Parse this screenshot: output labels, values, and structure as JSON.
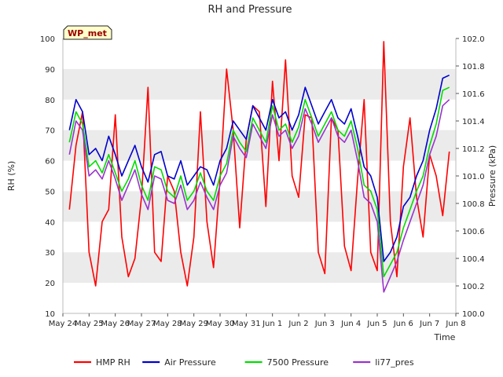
{
  "chart_data": {
    "type": "line",
    "title": "RH and Pressure",
    "xlabel": "Time",
    "ylabel_left": "RH (%)",
    "ylabel_right": "Pressure (kPa)",
    "annotation": "WP_met",
    "x_ticks": [
      "May 24",
      "May 25",
      "May 26",
      "May 27",
      "May 28",
      "May 29",
      "May 30",
      "May 31",
      "Jun 1",
      "Jun 2",
      "Jun 3",
      "Jun 4",
      "Jun 5",
      "Jun 6",
      "Jun 7",
      "Jun 8"
    ],
    "y_left_ticks": [
      10,
      20,
      30,
      40,
      50,
      60,
      70,
      80,
      90,
      100
    ],
    "y_right_ticks": [
      100.0,
      100.2,
      100.4,
      100.6,
      100.8,
      101.0,
      101.2,
      101.4,
      101.6,
      101.8,
      102.0
    ],
    "ylim_left": [
      10,
      100
    ],
    "ylim_right": [
      100.0,
      102.0
    ],
    "grid": "horizontal bands",
    "legend_position": "bottom-center",
    "colors": {
      "HMP RH": "#ff0000",
      "Air Pressure": "#0000cc",
      "7500 Pressure": "#00dd00",
      "li77_pres": "#9933cc",
      "band": "#ebebeb"
    },
    "series": [
      {
        "name": "HMP RH",
        "axis": "left",
        "x": [
          "2023-05-24 06:00",
          "2023-05-24 12:00",
          "2023-05-24 18:00",
          "2023-05-25 00:00",
          "2023-05-25 06:00",
          "2023-05-25 12:00",
          "2023-05-25 18:00",
          "2023-05-26 00:00",
          "2023-05-26 06:00",
          "2023-05-26 12:00",
          "2023-05-26 18:00",
          "2023-05-27 00:00",
          "2023-05-27 06:00",
          "2023-05-27 12:00",
          "2023-05-27 18:00",
          "2023-05-28 00:00",
          "2023-05-28 06:00",
          "2023-05-28 12:00",
          "2023-05-28 18:00",
          "2023-05-29 00:00",
          "2023-05-29 06:00",
          "2023-05-29 12:00",
          "2023-05-29 18:00",
          "2023-05-30 00:00",
          "2023-05-30 06:00",
          "2023-05-30 12:00",
          "2023-05-30 18:00",
          "2023-05-31 00:00",
          "2023-05-31 06:00",
          "2023-05-31 12:00",
          "2023-05-31 18:00",
          "2023-06-01 00:00",
          "2023-06-01 06:00",
          "2023-06-01 12:00",
          "2023-06-01 18:00",
          "2023-06-02 00:00",
          "2023-06-02 06:00",
          "2023-06-02 12:00",
          "2023-06-02 18:00",
          "2023-06-03 00:00",
          "2023-06-03 06:00",
          "2023-06-03 12:00",
          "2023-06-03 18:00",
          "2023-06-04 00:00",
          "2023-06-04 06:00",
          "2023-06-04 12:00",
          "2023-06-04 18:00",
          "2023-06-05 00:00",
          "2023-06-05 06:00",
          "2023-06-05 12:00",
          "2023-06-05 18:00",
          "2023-06-06 00:00",
          "2023-06-06 06:00",
          "2023-06-06 12:00",
          "2023-06-06 18:00",
          "2023-06-07 00:00",
          "2023-06-07 06:00",
          "2023-06-07 12:00",
          "2023-06-07 18:00"
        ],
        "values": [
          44,
          65,
          76,
          30,
          19,
          40,
          44,
          75,
          35,
          22,
          28,
          48,
          84,
          30,
          27,
          55,
          50,
          30,
          19,
          35,
          76,
          40,
          25,
          54,
          90,
          70,
          38,
          67,
          78,
          76,
          45,
          86,
          60,
          93,
          55,
          48,
          75,
          74,
          30,
          23,
          74,
          70,
          32,
          24,
          54,
          80,
          30,
          24,
          99,
          40,
          22,
          58,
          74,
          48,
          35,
          62,
          55,
          42,
          63
        ]
      },
      {
        "name": "Air Pressure",
        "axis": "left",
        "x": [
          "2023-05-24 06:00",
          "2023-05-24 12:00",
          "2023-05-24 18:00",
          "2023-05-25 00:00",
          "2023-05-25 06:00",
          "2023-05-25 12:00",
          "2023-05-25 18:00",
          "2023-05-26 00:00",
          "2023-05-26 06:00",
          "2023-05-26 12:00",
          "2023-05-26 18:00",
          "2023-05-27 00:00",
          "2023-05-27 06:00",
          "2023-05-27 12:00",
          "2023-05-27 18:00",
          "2023-05-28 00:00",
          "2023-05-28 06:00",
          "2023-05-28 12:00",
          "2023-05-28 18:00",
          "2023-05-29 00:00",
          "2023-05-29 06:00",
          "2023-05-29 12:00",
          "2023-05-29 18:00",
          "2023-05-30 00:00",
          "2023-05-30 06:00",
          "2023-05-30 12:00",
          "2023-05-30 18:00",
          "2023-05-31 00:00",
          "2023-05-31 06:00",
          "2023-05-31 12:00",
          "2023-05-31 18:00",
          "2023-06-01 00:00",
          "2023-06-01 06:00",
          "2023-06-01 12:00",
          "2023-06-01 18:00",
          "2023-06-02 00:00",
          "2023-06-02 06:00",
          "2023-06-02 12:00",
          "2023-06-02 18:00",
          "2023-06-03 00:00",
          "2023-06-03 06:00",
          "2023-06-03 12:00",
          "2023-06-03 18:00",
          "2023-06-04 00:00",
          "2023-06-04 06:00",
          "2023-06-04 12:00",
          "2023-06-04 18:00",
          "2023-06-05 00:00",
          "2023-06-05 06:00",
          "2023-06-05 12:00",
          "2023-06-05 18:00",
          "2023-06-06 00:00",
          "2023-06-06 06:00",
          "2023-06-06 12:00",
          "2023-06-06 18:00",
          "2023-06-07 00:00",
          "2023-06-07 06:00",
          "2023-06-07 12:00",
          "2023-06-07 18:00"
        ],
        "values": [
          70,
          80,
          76,
          62,
          64,
          60,
          68,
          62,
          55,
          60,
          65,
          58,
          53,
          62,
          63,
          55,
          54,
          60,
          52,
          55,
          58,
          57,
          52,
          60,
          64,
          73,
          70,
          67,
          78,
          74,
          70,
          80,
          74,
          76,
          70,
          75,
          84,
          78,
          72,
          76,
          80,
          74,
          72,
          77,
          68,
          58,
          55,
          48,
          27,
          30,
          35,
          45,
          48,
          55,
          60,
          70,
          77,
          87,
          88
        ]
      },
      {
        "name": "7500 Pressure",
        "axis": "left",
        "x": [
          "2023-05-24 06:00",
          "2023-05-24 12:00",
          "2023-05-24 18:00",
          "2023-05-25 00:00",
          "2023-05-25 06:00",
          "2023-05-25 12:00",
          "2023-05-25 18:00",
          "2023-05-26 00:00",
          "2023-05-26 06:00",
          "2023-05-26 12:00",
          "2023-05-26 18:00",
          "2023-05-27 00:00",
          "2023-05-27 06:00",
          "2023-05-27 12:00",
          "2023-05-27 18:00",
          "2023-05-28 00:00",
          "2023-05-28 06:00",
          "2023-05-28 12:00",
          "2023-05-28 18:00",
          "2023-05-29 00:00",
          "2023-05-29 06:00",
          "2023-05-29 12:00",
          "2023-05-29 18:00",
          "2023-05-30 00:00",
          "2023-05-30 06:00",
          "2023-05-30 12:00",
          "2023-05-30 18:00",
          "2023-05-31 00:00",
          "2023-05-31 06:00",
          "2023-05-31 12:00",
          "2023-05-31 18:00",
          "2023-06-01 00:00",
          "2023-06-01 06:00",
          "2023-06-01 12:00",
          "2023-06-01 18:00",
          "2023-06-02 00:00",
          "2023-06-02 06:00",
          "2023-06-02 12:00",
          "2023-06-02 18:00",
          "2023-06-03 00:00",
          "2023-06-03 06:00",
          "2023-06-03 12:00",
          "2023-06-03 18:00",
          "2023-06-04 00:00",
          "2023-06-04 06:00",
          "2023-06-04 12:00",
          "2023-06-04 18:00",
          "2023-06-05 00:00",
          "2023-06-05 06:00",
          "2023-06-05 12:00",
          "2023-06-05 18:00",
          "2023-06-06 00:00",
          "2023-06-06 06:00",
          "2023-06-06 12:00",
          "2023-06-06 18:00",
          "2023-06-07 00:00",
          "2023-06-07 06:00",
          "2023-06-07 12:00",
          "2023-06-07 18:00"
        ],
        "values": [
          66,
          76,
          72,
          58,
          60,
          56,
          62,
          56,
          50,
          54,
          60,
          52,
          47,
          58,
          57,
          50,
          48,
          55,
          47,
          50,
          56,
          50,
          47,
          55,
          59,
          70,
          66,
          63,
          74,
          70,
          66,
          78,
          70,
          72,
          66,
          71,
          80,
          74,
          68,
          72,
          76,
          70,
          68,
          73,
          64,
          52,
          50,
          44,
          22,
          26,
          30,
          38,
          44,
          50,
          55,
          65,
          72,
          83,
          84
        ]
      },
      {
        "name": "li77_pres",
        "axis": "left",
        "x": [
          "2023-05-24 06:00",
          "2023-05-24 12:00",
          "2023-05-24 18:00",
          "2023-05-25 00:00",
          "2023-05-25 06:00",
          "2023-05-25 12:00",
          "2023-05-25 18:00",
          "2023-05-26 00:00",
          "2023-05-26 06:00",
          "2023-05-26 12:00",
          "2023-05-26 18:00",
          "2023-05-27 00:00",
          "2023-05-27 06:00",
          "2023-05-27 12:00",
          "2023-05-27 18:00",
          "2023-05-28 00:00",
          "2023-05-28 06:00",
          "2023-05-28 12:00",
          "2023-05-28 18:00",
          "2023-05-29 00:00",
          "2023-05-29 06:00",
          "2023-05-29 12:00",
          "2023-05-29 18:00",
          "2023-05-30 00:00",
          "2023-05-30 06:00",
          "2023-05-30 12:00",
          "2023-05-30 18:00",
          "2023-05-31 00:00",
          "2023-05-31 06:00",
          "2023-05-31 12:00",
          "2023-05-31 18:00",
          "2023-06-01 00:00",
          "2023-06-01 06:00",
          "2023-06-01 12:00",
          "2023-06-01 18:00",
          "2023-06-02 00:00",
          "2023-06-02 06:00",
          "2023-06-02 12:00",
          "2023-06-02 18:00",
          "2023-06-03 00:00",
          "2023-06-03 06:00",
          "2023-06-03 12:00",
          "2023-06-03 18:00",
          "2023-06-04 00:00",
          "2023-06-04 06:00",
          "2023-06-04 12:00",
          "2023-06-04 18:00",
          "2023-06-05 00:00",
          "2023-06-05 06:00",
          "2023-06-05 12:00",
          "2023-06-05 18:00",
          "2023-06-06 00:00",
          "2023-06-06 06:00",
          "2023-06-06 12:00",
          "2023-06-06 18:00",
          "2023-06-07 00:00",
          "2023-06-07 06:00",
          "2023-06-07 12:00",
          "2023-06-07 18:00"
        ],
        "values": [
          62,
          73,
          70,
          55,
          57,
          54,
          60,
          54,
          47,
          52,
          57,
          49,
          44,
          55,
          54,
          47,
          46,
          52,
          44,
          47,
          53,
          48,
          44,
          52,
          56,
          68,
          64,
          61,
          72,
          68,
          64,
          75,
          68,
          70,
          64,
          68,
          77,
          72,
          66,
          70,
          74,
          68,
          66,
          70,
          60,
          48,
          46,
          40,
          17,
          22,
          27,
          34,
          40,
          46,
          52,
          62,
          68,
          78,
          80
        ]
      }
    ]
  }
}
